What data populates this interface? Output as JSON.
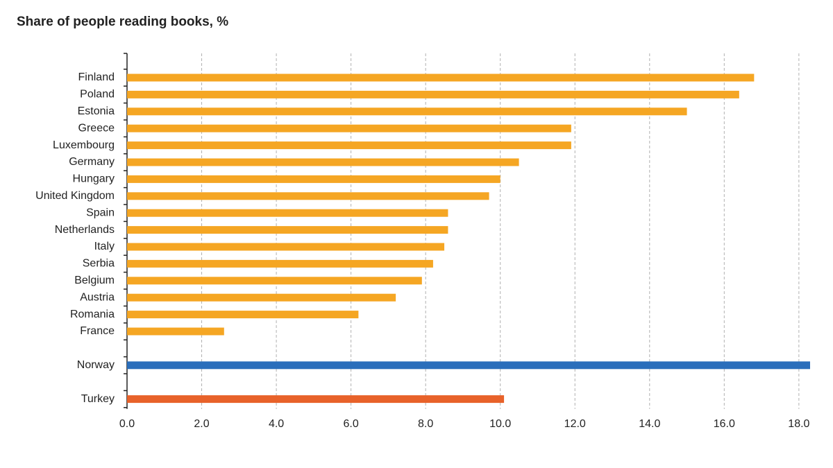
{
  "chart_data": {
    "type": "hbar",
    "title": "Share of people reading books, %",
    "categories": [
      "Finland",
      "Poland",
      "Estonia",
      "Greece",
      "Luxembourg",
      "Germany",
      "Hungary",
      "United Kingdom",
      "Spain",
      "Netherlands",
      "Italy",
      "Serbia",
      "Belgium",
      "Austria",
      "Romania",
      "France",
      null,
      "Norway",
      null,
      "Turkey"
    ],
    "values": [
      16.8,
      16.4,
      15.0,
      11.9,
      11.9,
      10.5,
      10.0,
      9.7,
      8.6,
      8.6,
      8.5,
      8.2,
      7.9,
      7.2,
      6.2,
      2.6,
      null,
      18.3,
      null,
      10.1
    ],
    "colors": [
      "#f5a623",
      "#f5a623",
      "#f5a623",
      "#f5a623",
      "#f5a623",
      "#f5a623",
      "#f5a623",
      "#f5a623",
      "#f5a623",
      "#f5a623",
      "#f5a623",
      "#f5a623",
      "#f5a623",
      "#f5a623",
      "#f5a623",
      "#f5a623",
      null,
      "#2a6ebb",
      null,
      "#e8622a"
    ],
    "xlim": [
      0,
      18.3
    ],
    "xticks": [
      {
        "value": 0,
        "label": "0.0"
      },
      {
        "value": 2,
        "label": "2.0"
      },
      {
        "value": 4,
        "label": "4.0"
      },
      {
        "value": 6,
        "label": "6.0"
      },
      {
        "value": 8,
        "label": "8.0"
      },
      {
        "value": 10,
        "label": "10.0"
      },
      {
        "value": 12,
        "label": "12.0"
      },
      {
        "value": 14,
        "label": "14.0"
      },
      {
        "value": 16,
        "label": "16.0"
      },
      {
        "value": 18,
        "label": "18.0"
      }
    ],
    "grid": true
  }
}
